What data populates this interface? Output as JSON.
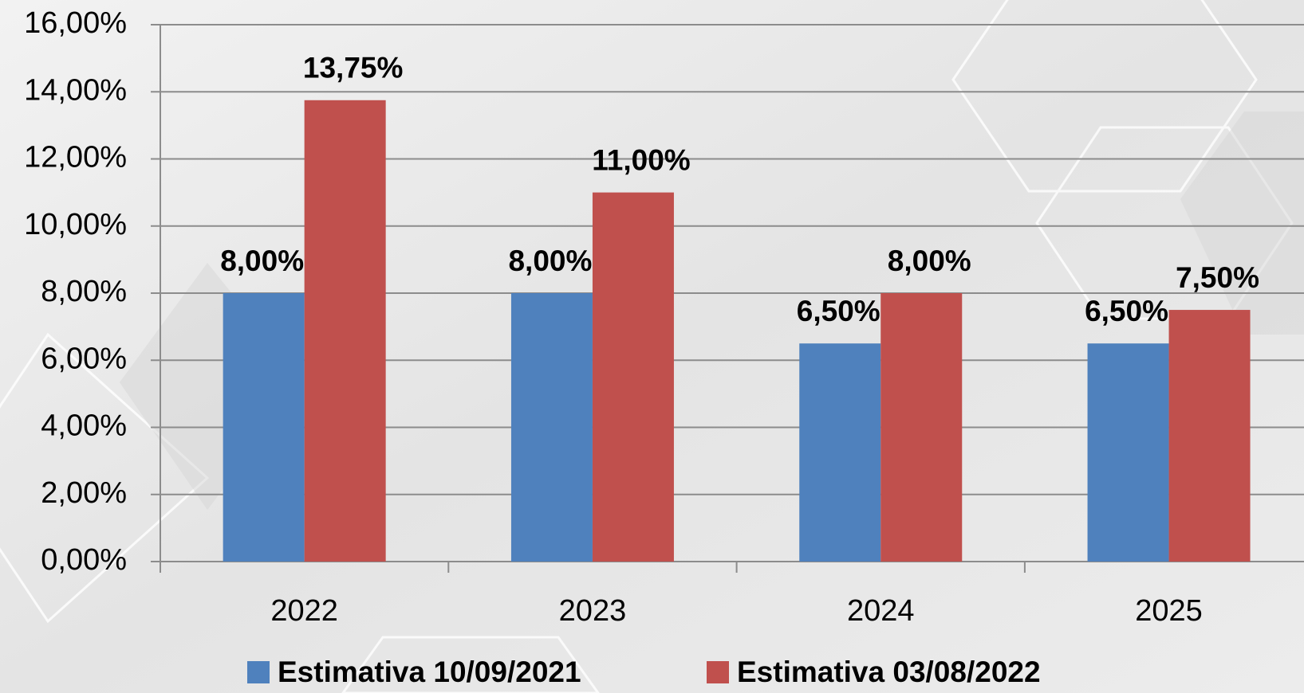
{
  "chart_data": {
    "type": "bar",
    "categories": [
      "2022",
      "2023",
      "2024",
      "2025"
    ],
    "series": [
      {
        "name": "Estimativa 10/09/2021",
        "color": "#4f81bd",
        "values": [
          8,
          8,
          6.5,
          6.5
        ],
        "value_labels": [
          "8,00%",
          "8,00%",
          "6,50%",
          "6,50%"
        ]
      },
      {
        "name": "Estimativa 03/08/2022",
        "color": "#c0504d",
        "values": [
          13.75,
          11,
          8,
          7.5
        ],
        "value_labels": [
          "13,75%",
          "11,00%",
          "8,00%",
          "7,50%"
        ]
      }
    ],
    "ylim": [
      0,
      16
    ],
    "yticks": [
      {
        "value": 0,
        "label": "0,00%"
      },
      {
        "value": 2,
        "label": "2,00%"
      },
      {
        "value": 4,
        "label": "4,00%"
      },
      {
        "value": 6,
        "label": "6,00%"
      },
      {
        "value": 8,
        "label": "8,00%"
      },
      {
        "value": 10,
        "label": "10,00%"
      },
      {
        "value": 12,
        "label": "12,00%"
      },
      {
        "value": 14,
        "label": "14,00%"
      },
      {
        "value": 16,
        "label": "16,00%"
      }
    ],
    "grid": true
  }
}
